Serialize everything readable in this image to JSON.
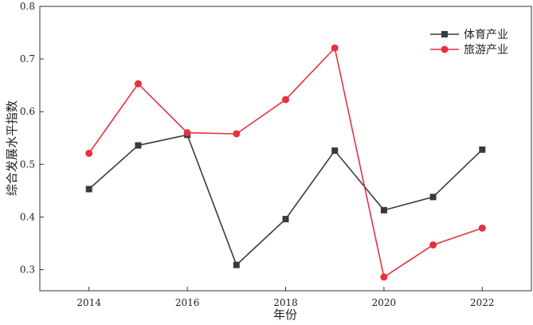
{
  "chart_data": {
    "type": "line",
    "title": "",
    "xlabel": "年份",
    "ylabel": "综合发展水平指数",
    "x": [
      2014,
      2015,
      2016,
      2017,
      2018,
      2019,
      2020,
      2021,
      2022
    ],
    "xlim": [
      2013,
      2023
    ],
    "ylim": [
      0.26,
      0.8
    ],
    "xticks": [
      "2014",
      "2016",
      "2018",
      "2020",
      "2022"
    ],
    "yticks": [
      "0.3",
      "0.4",
      "0.5",
      "0.6",
      "0.7",
      "0.8"
    ],
    "grid": false,
    "legend_position": "top-right",
    "series": [
      {
        "name": "体育产业",
        "color": "#3a3a3a",
        "marker": "square",
        "values": [
          0.453,
          0.536,
          0.556,
          0.309,
          0.396,
          0.526,
          0.413,
          0.438,
          0.528
        ]
      },
      {
        "name": "旅游产业",
        "color": "#e8303e",
        "marker": "circle",
        "values": [
          0.521,
          0.653,
          0.56,
          0.558,
          0.623,
          0.721,
          0.286,
          0.347,
          0.379
        ]
      }
    ]
  }
}
